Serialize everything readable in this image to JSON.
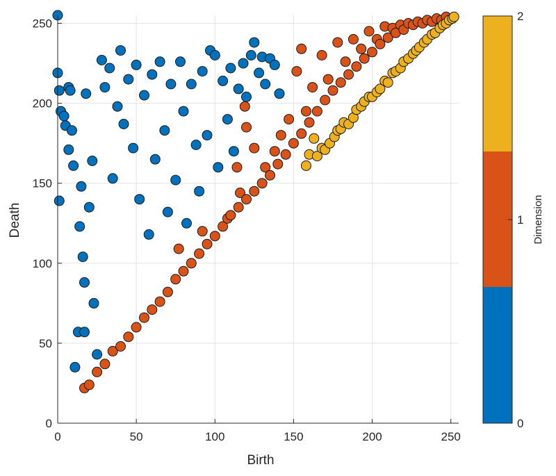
{
  "chart_data": {
    "type": "scatter",
    "xlabel": "Birth",
    "ylabel": "Death",
    "xlim": [
      0,
      255
    ],
    "ylim": [
      0,
      255
    ],
    "xticks": [
      "0",
      "50",
      "100",
      "150",
      "200",
      "250"
    ],
    "yticks": [
      "0",
      "50",
      "100",
      "150",
      "200",
      "250"
    ],
    "grid": true,
    "colorbar": {
      "label": "Dimension",
      "ticks": [
        "0",
        "1",
        "2"
      ],
      "position": "right",
      "colors": [
        "#0072BD",
        "#D95319",
        "#EDB120"
      ]
    },
    "series": [
      {
        "dimension": 0,
        "color": "#0072BD",
        "points": [
          [
            0,
            255
          ],
          [
            0,
            219
          ],
          [
            1,
            139
          ],
          [
            1,
            208
          ],
          [
            2,
            195
          ],
          [
            4,
            192
          ],
          [
            5,
            186
          ],
          [
            7,
            210
          ],
          [
            7,
            171
          ],
          [
            8,
            208
          ],
          [
            9,
            183
          ],
          [
            10,
            161
          ],
          [
            11,
            35
          ],
          [
            13,
            57
          ],
          [
            14,
            123
          ],
          [
            15,
            148
          ],
          [
            16,
            104
          ],
          [
            17,
            57
          ],
          [
            17,
            88
          ],
          [
            18,
            206
          ],
          [
            20,
            135
          ],
          [
            22,
            164
          ],
          [
            23,
            75
          ],
          [
            25,
            43
          ],
          [
            28,
            227
          ],
          [
            30,
            210
          ],
          [
            33,
            222
          ],
          [
            35,
            153
          ],
          [
            38,
            198
          ],
          [
            40,
            233
          ],
          [
            42,
            187
          ],
          [
            45,
            215
          ],
          [
            48,
            172
          ],
          [
            50,
            224
          ],
          [
            52,
            140
          ],
          [
            55,
            205
          ],
          [
            58,
            118
          ],
          [
            60,
            218
          ],
          [
            62,
            165
          ],
          [
            65,
            226
          ],
          [
            68,
            183
          ],
          [
            70,
            132
          ],
          [
            72,
            212
          ],
          [
            75,
            152
          ],
          [
            78,
            226
          ],
          [
            80,
            195
          ],
          [
            82,
            125
          ],
          [
            85,
            212
          ],
          [
            88,
            174
          ],
          [
            90,
            145
          ],
          [
            92,
            220
          ],
          [
            95,
            180
          ],
          [
            97,
            233
          ],
          [
            100,
            230
          ],
          [
            102,
            160
          ],
          [
            105,
            214
          ],
          [
            108,
            190
          ],
          [
            110,
            222
          ],
          [
            112,
            170
          ],
          [
            115,
            209
          ],
          [
            118,
            225
          ],
          [
            120,
            204
          ],
          [
            123,
            230
          ],
          [
            125,
            238
          ],
          [
            128,
            219
          ],
          [
            130,
            229
          ],
          [
            132,
            212
          ],
          [
            135,
            228
          ],
          [
            138,
            224
          ],
          [
            141,
            206
          ]
        ]
      },
      {
        "dimension": 1,
        "color": "#D95319",
        "points": [
          [
            17,
            22
          ],
          [
            20,
            24
          ],
          [
            25,
            32
          ],
          [
            30,
            37
          ],
          [
            35,
            45
          ],
          [
            40,
            48
          ],
          [
            45,
            54
          ],
          [
            50,
            60
          ],
          [
            55,
            66
          ],
          [
            60,
            71
          ],
          [
            65,
            76
          ],
          [
            70,
            82
          ],
          [
            75,
            90
          ],
          [
            77,
            109
          ],
          [
            80,
            95
          ],
          [
            85,
            100
          ],
          [
            90,
            106
          ],
          [
            92,
            120
          ],
          [
            95,
            112
          ],
          [
            100,
            117
          ],
          [
            105,
            123
          ],
          [
            108,
            128
          ],
          [
            110,
            130
          ],
          [
            114,
            160
          ],
          [
            115,
            135
          ],
          [
            116,
            144
          ],
          [
            120,
            185
          ],
          [
            120,
            140
          ],
          [
            119,
            198
          ],
          [
            125,
            145
          ],
          [
            125,
            172
          ],
          [
            130,
            150
          ],
          [
            132,
            160
          ],
          [
            135,
            155
          ],
          [
            138,
            170
          ],
          [
            140,
            162
          ],
          [
            142,
            180
          ],
          [
            145,
            168
          ],
          [
            147,
            190
          ],
          [
            150,
            175
          ],
          [
            152,
            220
          ],
          [
            155,
            181
          ],
          [
            155,
            234
          ],
          [
            158,
            195
          ],
          [
            160,
            188
          ],
          [
            162,
            210
          ],
          [
            165,
            195
          ],
          [
            168,
            230
          ],
          [
            170,
            202
          ],
          [
            172,
            215
          ],
          [
            175,
            208
          ],
          [
            178,
            238
          ],
          [
            180,
            213
          ],
          [
            183,
            226
          ],
          [
            185,
            218
          ],
          [
            188,
            240
          ],
          [
            190,
            223
          ],
          [
            193,
            234
          ],
          [
            195,
            228
          ],
          [
            198,
            245
          ],
          [
            200,
            232
          ],
          [
            203,
            240
          ],
          [
            205,
            237
          ],
          [
            208,
            248
          ],
          [
            210,
            241
          ],
          [
            213,
            247
          ],
          [
            215,
            244
          ],
          [
            218,
            249
          ],
          [
            220,
            246
          ],
          [
            223,
            250
          ],
          [
            226,
            249
          ],
          [
            229,
            251
          ],
          [
            232,
            250
          ],
          [
            235,
            252
          ],
          [
            238,
            251
          ],
          [
            241,
            253
          ],
          [
            244,
            252
          ],
          [
            247,
            254
          ]
        ]
      },
      {
        "dimension": 2,
        "color": "#EDB120",
        "points": [
          [
            158,
            161
          ],
          [
            160,
            168
          ],
          [
            163,
            178
          ],
          [
            165,
            167
          ],
          [
            168,
            172
          ],
          [
            170,
            171
          ],
          [
            173,
            175
          ],
          [
            176,
            179
          ],
          [
            178,
            183
          ],
          [
            180,
            184
          ],
          [
            182,
            188
          ],
          [
            185,
            187
          ],
          [
            188,
            191
          ],
          [
            190,
            196
          ],
          [
            193,
            198
          ],
          [
            195,
            201
          ],
          [
            198,
            204
          ],
          [
            200,
            204
          ],
          [
            203,
            207
          ],
          [
            205,
            209
          ],
          [
            208,
            214
          ],
          [
            210,
            213
          ],
          [
            213,
            219
          ],
          [
            215,
            220
          ],
          [
            218,
            222
          ],
          [
            220,
            226
          ],
          [
            223,
            228
          ],
          [
            226,
            231
          ],
          [
            228,
            233
          ],
          [
            230,
            235
          ],
          [
            233,
            238
          ],
          [
            235,
            240
          ],
          [
            238,
            243
          ],
          [
            240,
            244
          ],
          [
            243,
            247
          ],
          [
            245,
            249
          ],
          [
            247,
            250
          ],
          [
            249,
            252
          ],
          [
            251,
            253
          ],
          [
            252,
            254
          ]
        ]
      }
    ]
  }
}
